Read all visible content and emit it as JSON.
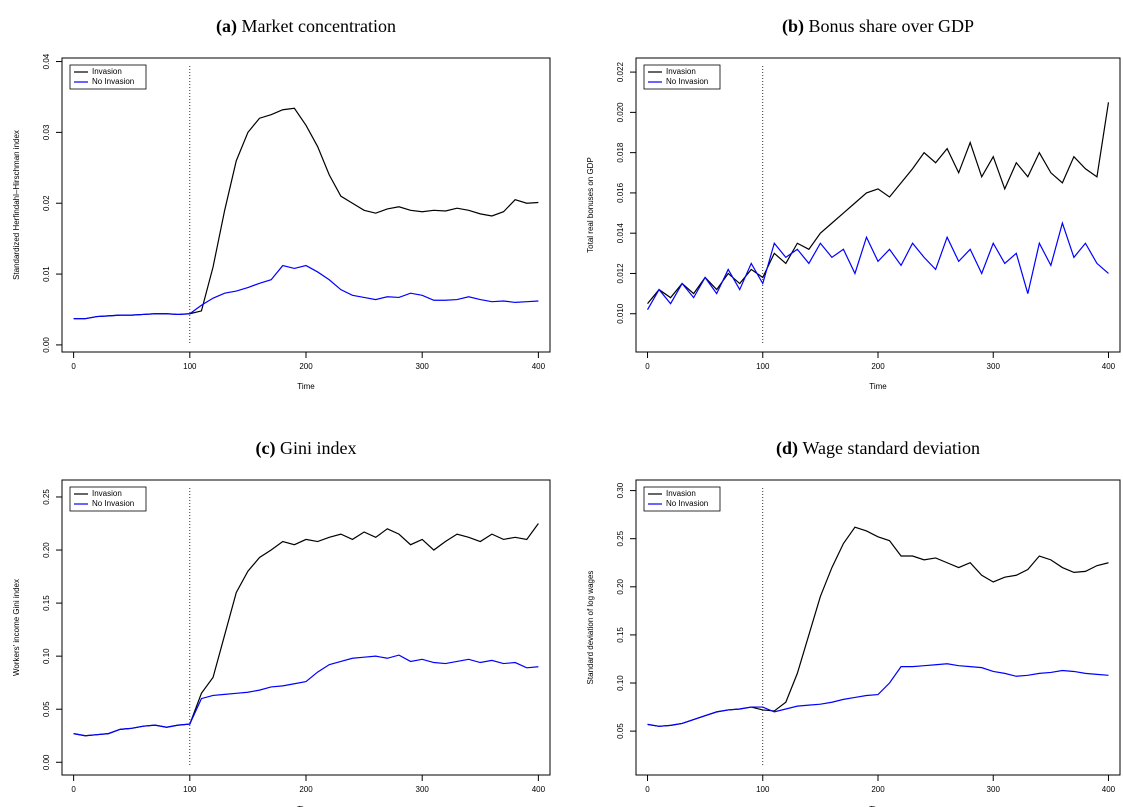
{
  "chart_data": [
    {
      "type": "line",
      "label": "(a)",
      "title": "Market concentration",
      "xlabel": "Time",
      "ylabel": "Standardized Herfindahl–Hirschman index",
      "x": [
        0,
        10,
        20,
        30,
        40,
        50,
        60,
        70,
        80,
        90,
        100,
        110,
        120,
        130,
        140,
        150,
        160,
        170,
        180,
        190,
        200,
        210,
        220,
        230,
        240,
        250,
        260,
        270,
        280,
        290,
        300,
        310,
        320,
        330,
        340,
        350,
        360,
        370,
        380,
        390,
        400
      ],
      "xlim": [
        -10,
        410
      ],
      "xticks": [
        0,
        100,
        200,
        300,
        400
      ],
      "ylim": [
        -0.001,
        0.0405
      ],
      "yticks": [
        {
          "value": 0,
          "label": "0.00"
        },
        0.01,
        0.02,
        0.03,
        0.04
      ],
      "vline": 100,
      "legend": "top-left",
      "series": [
        {
          "name": "Invasion",
          "color": "#000000",
          "values": [
            0.0037,
            0.0037,
            0.004,
            0.0041,
            0.0042,
            0.0042,
            0.0043,
            0.0044,
            0.0044,
            0.0043,
            0.0044,
            0.0048,
            0.011,
            0.019,
            0.026,
            0.03,
            0.032,
            0.0325,
            0.0332,
            0.0334,
            0.031,
            0.028,
            0.024,
            0.021,
            0.02,
            0.019,
            0.0186,
            0.0192,
            0.0195,
            0.019,
            0.0188,
            0.019,
            0.0189,
            0.0193,
            0.019,
            0.0185,
            0.0182,
            0.0188,
            0.0205,
            0.02,
            0.0201
          ]
        },
        {
          "name": "No Invasion",
          "color": "#0000ff",
          "values": [
            0.0037,
            0.0037,
            0.004,
            0.0041,
            0.0042,
            0.0042,
            0.0043,
            0.0044,
            0.0044,
            0.0043,
            0.0044,
            0.0056,
            0.0066,
            0.0073,
            0.0076,
            0.0081,
            0.0087,
            0.0092,
            0.0112,
            0.0108,
            0.0112,
            0.0103,
            0.0092,
            0.0078,
            0.007,
            0.0067,
            0.0064,
            0.0068,
            0.0067,
            0.0073,
            0.007,
            0.0063,
            0.0063,
            0.0064,
            0.0068,
            0.0064,
            0.0061,
            0.0062,
            0.006,
            0.0061,
            0.0062
          ]
        }
      ]
    },
    {
      "type": "line",
      "label": "(b)",
      "title": "Bonus share over GDP",
      "xlabel": "Time",
      "ylabel": "Total real bonuses on GDP",
      "x": [
        0,
        10,
        20,
        30,
        40,
        50,
        60,
        70,
        80,
        90,
        100,
        110,
        120,
        130,
        140,
        150,
        160,
        170,
        180,
        190,
        200,
        210,
        220,
        230,
        240,
        250,
        260,
        270,
        280,
        290,
        300,
        310,
        320,
        330,
        340,
        350,
        360,
        370,
        380,
        390,
        400
      ],
      "xlim": [
        -10,
        410
      ],
      "xticks": [
        0,
        100,
        200,
        300,
        400
      ],
      "ylim": [
        0.0081,
        0.0227
      ],
      "yticks": [
        {
          "value": 0.01,
          "label": "0.010"
        },
        0.012,
        0.014,
        0.016,
        0.018,
        {
          "value": 0.02,
          "label": "0.020"
        },
        0.022
      ],
      "vline": 100,
      "legend": "top-left",
      "series": [
        {
          "name": "Invasion",
          "color": "#000000",
          "values": [
            0.0105,
            0.0112,
            0.0108,
            0.0115,
            0.011,
            0.0118,
            0.0112,
            0.012,
            0.0115,
            0.0122,
            0.0118,
            0.013,
            0.0125,
            0.0135,
            0.0132,
            0.014,
            0.0145,
            0.015,
            0.0155,
            0.016,
            0.0162,
            0.0158,
            0.0165,
            0.0172,
            0.018,
            0.0175,
            0.0182,
            0.017,
            0.0185,
            0.0168,
            0.0178,
            0.0162,
            0.0175,
            0.0168,
            0.018,
            0.017,
            0.0165,
            0.0178,
            0.0172,
            0.0168,
            0.0205
          ]
        },
        {
          "name": "No Invasion",
          "color": "#0000ff",
          "values": [
            0.0102,
            0.0112,
            0.0105,
            0.0115,
            0.0108,
            0.0118,
            0.011,
            0.0122,
            0.0112,
            0.0125,
            0.0115,
            0.0135,
            0.0128,
            0.0132,
            0.0125,
            0.0135,
            0.0128,
            0.0132,
            0.012,
            0.0138,
            0.0126,
            0.0132,
            0.0124,
            0.0135,
            0.0128,
            0.0122,
            0.0138,
            0.0126,
            0.0132,
            0.012,
            0.0135,
            0.0125,
            0.013,
            0.011,
            0.0135,
            0.0124,
            0.0145,
            0.0128,
            0.0135,
            0.0125,
            0.012
          ]
        }
      ]
    },
    {
      "type": "line",
      "label": "(c)",
      "title": "Gini index",
      "xlabel": "Time",
      "ylabel": "Workers' income Gini index",
      "x": [
        0,
        10,
        20,
        30,
        40,
        50,
        60,
        70,
        80,
        90,
        100,
        110,
        120,
        130,
        140,
        150,
        160,
        170,
        180,
        190,
        200,
        210,
        220,
        230,
        240,
        250,
        260,
        270,
        280,
        290,
        300,
        310,
        320,
        330,
        340,
        350,
        360,
        370,
        380,
        390,
        400
      ],
      "xlim": [
        -10,
        410
      ],
      "xticks": [
        0,
        100,
        200,
        300,
        400
      ],
      "ylim": [
        -0.012,
        0.266
      ],
      "yticks": [
        {
          "value": 0,
          "label": "0.00"
        },
        0.05,
        {
          "value": 0.1,
          "label": "0.10"
        },
        0.15,
        {
          "value": 0.2,
          "label": "0.20"
        },
        0.25
      ],
      "vline": 100,
      "legend": "top-left",
      "series": [
        {
          "name": "Invasion",
          "color": "#000000",
          "values": [
            0.027,
            0.025,
            0.026,
            0.027,
            0.031,
            0.032,
            0.034,
            0.035,
            0.033,
            0.035,
            0.036,
            0.065,
            0.08,
            0.12,
            0.16,
            0.18,
            0.193,
            0.2,
            0.208,
            0.205,
            0.21,
            0.208,
            0.212,
            0.215,
            0.21,
            0.217,
            0.212,
            0.22,
            0.215,
            0.205,
            0.21,
            0.2,
            0.208,
            0.215,
            0.212,
            0.208,
            0.215,
            0.21,
            0.212,
            0.21,
            0.225
          ]
        },
        {
          "name": "No Invasion",
          "color": "#0000ff",
          "values": [
            0.027,
            0.025,
            0.026,
            0.027,
            0.031,
            0.032,
            0.034,
            0.035,
            0.033,
            0.035,
            0.036,
            0.06,
            0.063,
            0.064,
            0.065,
            0.066,
            0.068,
            0.071,
            0.072,
            0.074,
            0.076,
            0.085,
            0.092,
            0.095,
            0.098,
            0.099,
            0.1,
            0.098,
            0.101,
            0.095,
            0.097,
            0.094,
            0.093,
            0.095,
            0.097,
            0.094,
            0.096,
            0.093,
            0.094,
            0.089,
            0.09
          ]
        }
      ]
    },
    {
      "type": "line",
      "label": "(d)",
      "title": "Wage standard deviation",
      "xlabel": "Time",
      "ylabel": "Standard deviation of log wages",
      "x": [
        0,
        10,
        20,
        30,
        40,
        50,
        60,
        70,
        80,
        90,
        100,
        110,
        120,
        130,
        140,
        150,
        160,
        170,
        180,
        190,
        200,
        210,
        220,
        230,
        240,
        250,
        260,
        270,
        280,
        290,
        300,
        310,
        320,
        330,
        340,
        350,
        360,
        370,
        380,
        390,
        400
      ],
      "xlim": [
        -10,
        410
      ],
      "xticks": [
        0,
        100,
        200,
        300,
        400
      ],
      "ylim": [
        0.0044,
        0.311
      ],
      "yticks": [
        0.05,
        {
          "value": 0.1,
          "label": "0.10"
        },
        0.15,
        {
          "value": 0.2,
          "label": "0.20"
        },
        0.25,
        {
          "value": 0.3,
          "label": "0.30"
        }
      ],
      "vline": 100,
      "legend": "top-left",
      "series": [
        {
          "name": "Invasion",
          "color": "#000000",
          "values": [
            0.057,
            0.055,
            0.056,
            0.058,
            0.062,
            0.066,
            0.07,
            0.072,
            0.073,
            0.075,
            0.072,
            0.071,
            0.08,
            0.11,
            0.15,
            0.19,
            0.22,
            0.245,
            0.262,
            0.258,
            0.252,
            0.248,
            0.232,
            0.232,
            0.228,
            0.23,
            0.225,
            0.22,
            0.225,
            0.212,
            0.205,
            0.21,
            0.212,
            0.218,
            0.232,
            0.228,
            0.22,
            0.215,
            0.216,
            0.222,
            0.225
          ]
        },
        {
          "name": "No Invasion",
          "color": "#0000ff",
          "values": [
            0.057,
            0.055,
            0.056,
            0.058,
            0.062,
            0.066,
            0.07,
            0.072,
            0.073,
            0.075,
            0.075,
            0.07,
            0.073,
            0.076,
            0.077,
            0.078,
            0.08,
            0.083,
            0.085,
            0.087,
            0.088,
            0.1,
            0.117,
            0.117,
            0.118,
            0.119,
            0.12,
            0.118,
            0.117,
            0.116,
            0.112,
            0.11,
            0.107,
            0.108,
            0.11,
            0.111,
            0.113,
            0.112,
            0.11,
            0.109,
            0.108
          ]
        }
      ]
    }
  ]
}
